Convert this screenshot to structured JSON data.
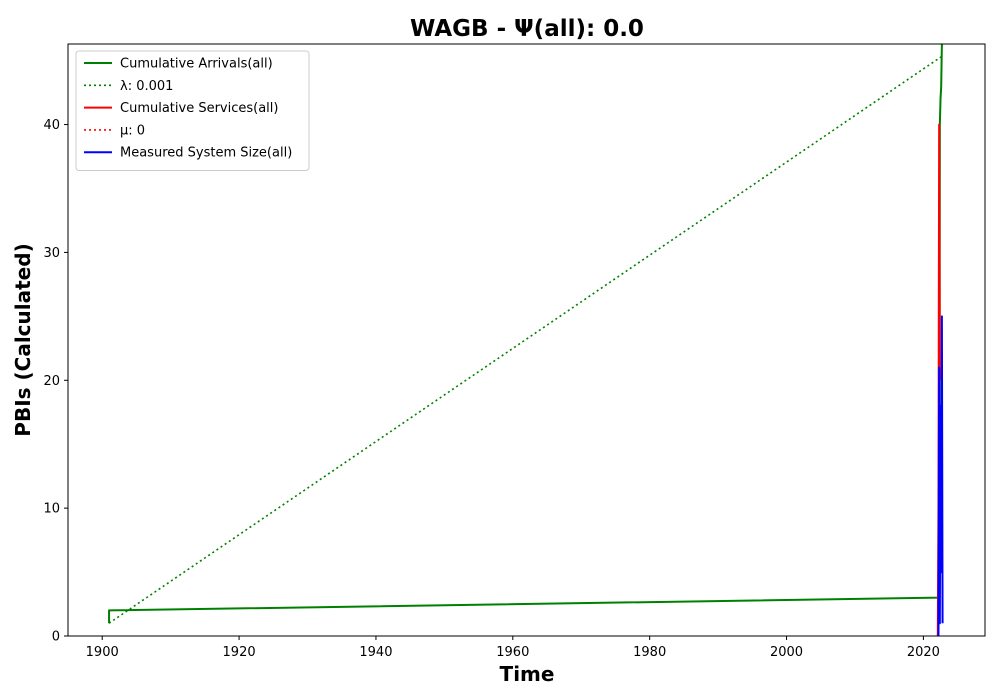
{
  "chart_data": {
    "type": "line",
    "title": "WAGB -  Ψ(all): 0.0",
    "xlabel": "Time",
    "ylabel": "PBIs (Calculated)",
    "xlim": [
      1895,
      2029
    ],
    "ylim": [
      0,
      46.3
    ],
    "x_ticks": [
      1900,
      1920,
      1940,
      1960,
      1980,
      2000,
      2020
    ],
    "y_ticks": [
      0,
      10,
      20,
      30,
      40
    ],
    "grid": false,
    "legend_position": "top-left",
    "series": [
      {
        "name": "Cumulative Arrivals(all)",
        "color": "#008000",
        "style": "solid",
        "points": [
          [
            1901,
            1
          ],
          [
            1901,
            2
          ],
          [
            2022.3,
            3
          ],
          [
            2022.35,
            3
          ],
          [
            2022.4,
            40
          ],
          [
            2022.5,
            42
          ],
          [
            2022.6,
            43
          ],
          [
            2022.7,
            46.3
          ]
        ]
      },
      {
        "name": "λ: 0.001",
        "color": "#008000",
        "style": "dotted",
        "points": [
          [
            1901,
            1
          ],
          [
            2022.6,
            45.3
          ]
        ]
      },
      {
        "name": "Cumulative Services(all)",
        "color": "#ff0000",
        "style": "solid",
        "points": [
          [
            2022.1,
            0
          ],
          [
            2022.2,
            10
          ],
          [
            2022.25,
            25
          ],
          [
            2022.3,
            40
          ],
          [
            2022.4,
            21
          ],
          [
            2022.5,
            20
          ]
        ]
      },
      {
        "name": "μ: 0",
        "color": "#ff0000",
        "style": "dotted",
        "points": []
      },
      {
        "name": "Measured System Size(all)",
        "color": "#0000ff",
        "style": "solid",
        "points": [
          [
            2022.2,
            0
          ],
          [
            2022.3,
            21
          ],
          [
            2022.4,
            1
          ],
          [
            2022.5,
            18
          ],
          [
            2022.6,
            5
          ],
          [
            2022.7,
            25
          ],
          [
            2022.8,
            1
          ]
        ]
      }
    ]
  }
}
